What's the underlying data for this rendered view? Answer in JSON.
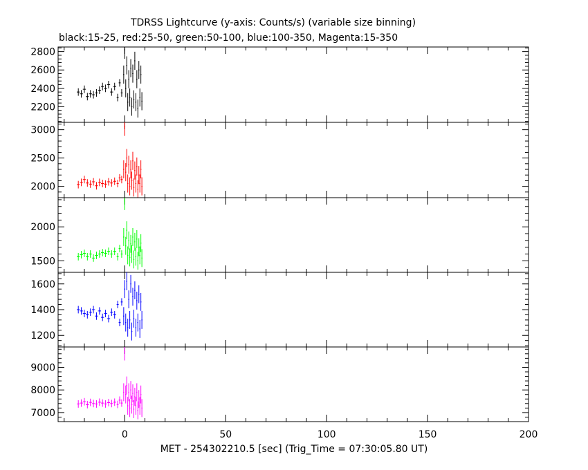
{
  "title": "TDRSS Lightcurve (y-axis: Counts/s) (variable size binning)",
  "subtitle": "black:15-25, red:25-50, green:50-100, blue:100-350, Magenta:15-350",
  "xlabel": "MET - 254302210.5 [sec] (Trig_Time = 07:30:05.80 UT)",
  "chart_data": {
    "type": "line",
    "title": "TDRSS Lightcurve (y-axis: Counts/s) (variable size binning)",
    "subtitle": "black:15-25, red:25-50, green:50-100, blue:100-350, Magenta:15-350",
    "xlabel": "MET - 254302210.5 [sec] (Trig_Time = 07:30:05.80 UT)",
    "xlim": [
      -33,
      200
    ],
    "xticks": [
      0,
      50,
      100,
      150,
      200
    ],
    "panels": [
      {
        "name": "15-25",
        "color": "#000000",
        "ylim": [
          2030,
          2850
        ],
        "yticks": [
          2200,
          2400,
          2600,
          2800
        ],
        "points": [
          [
            -23,
            2360
          ],
          [
            -21.5,
            2340
          ],
          [
            -20,
            2390
          ],
          [
            -18.5,
            2310
          ],
          [
            -17,
            2340
          ],
          [
            -15.5,
            2330
          ],
          [
            -14,
            2350
          ],
          [
            -12.5,
            2380
          ],
          [
            -11,
            2420
          ],
          [
            -9.5,
            2400
          ],
          [
            -8,
            2440
          ],
          [
            -6.5,
            2360
          ],
          [
            -5,
            2420
          ],
          [
            -3.5,
            2300
          ],
          [
            -2.5,
            2460
          ],
          [
            -1.5,
            2350
          ],
          [
            -0.5,
            2550
          ],
          [
            0,
            2820
          ],
          [
            0.5,
            2400
          ],
          [
            1,
            2650
          ],
          [
            1.5,
            2250
          ],
          [
            2,
            2500
          ],
          [
            2.5,
            2300
          ],
          [
            3,
            2620
          ],
          [
            3.5,
            2200
          ],
          [
            4,
            2560
          ],
          [
            4.5,
            2280
          ],
          [
            5,
            2700
          ],
          [
            5.5,
            2250
          ],
          [
            6,
            2500
          ],
          [
            6.5,
            2180
          ],
          [
            7,
            2600
          ],
          [
            7.5,
            2300
          ],
          [
            8,
            2550
          ],
          [
            8.5,
            2260
          ]
        ]
      },
      {
        "name": "25-50",
        "color": "#ff0000",
        "ylim": [
          1800,
          3130
        ],
        "yticks": [
          2000,
          2500,
          3000
        ],
        "points": [
          [
            -23,
            2030
          ],
          [
            -21.5,
            2070
          ],
          [
            -20,
            2120
          ],
          [
            -18.5,
            2060
          ],
          [
            -17,
            2040
          ],
          [
            -15.5,
            2080
          ],
          [
            -14,
            2010
          ],
          [
            -12.5,
            2070
          ],
          [
            -11,
            2050
          ],
          [
            -9.5,
            2040
          ],
          [
            -8,
            2080
          ],
          [
            -6.5,
            2060
          ],
          [
            -5,
            2090
          ],
          [
            -3.5,
            2050
          ],
          [
            -2.5,
            2150
          ],
          [
            -1.5,
            2120
          ],
          [
            -0.5,
            2300
          ],
          [
            0,
            3050
          ],
          [
            0.5,
            2250
          ],
          [
            1,
            2500
          ],
          [
            1.5,
            2050
          ],
          [
            2,
            2380
          ],
          [
            2.5,
            2000
          ],
          [
            3,
            2300
          ],
          [
            3.5,
            2100
          ],
          [
            4,
            2450
          ],
          [
            4.5,
            1980
          ],
          [
            5,
            2280
          ],
          [
            5.5,
            2050
          ],
          [
            6,
            2350
          ],
          [
            6.5,
            1950
          ],
          [
            7,
            2200
          ],
          [
            7.5,
            2050
          ],
          [
            8,
            2300
          ],
          [
            8.5,
            2000
          ]
        ]
      },
      {
        "name": "50-100",
        "color": "#00ff00",
        "ylim": [
          1330,
          2430
        ],
        "yticks": [
          1500,
          2000
        ],
        "points": [
          [
            -23,
            1560
          ],
          [
            -21.5,
            1590
          ],
          [
            -20,
            1610
          ],
          [
            -18.5,
            1560
          ],
          [
            -17,
            1600
          ],
          [
            -15.5,
            1540
          ],
          [
            -14,
            1580
          ],
          [
            -12.5,
            1600
          ],
          [
            -11,
            1620
          ],
          [
            -9.5,
            1610
          ],
          [
            -8,
            1640
          ],
          [
            -6.5,
            1600
          ],
          [
            -5,
            1640
          ],
          [
            -3.5,
            1560
          ],
          [
            -2.5,
            1680
          ],
          [
            -1.5,
            1600
          ],
          [
            -0.5,
            1850
          ],
          [
            0,
            2380
          ],
          [
            0.5,
            1720
          ],
          [
            1,
            1950
          ],
          [
            1.5,
            1580
          ],
          [
            2,
            1800
          ],
          [
            2.5,
            1550
          ],
          [
            3,
            1750
          ],
          [
            3.5,
            1600
          ],
          [
            4,
            1850
          ],
          [
            4.5,
            1520
          ],
          [
            5,
            1780
          ],
          [
            5.5,
            1560
          ],
          [
            6,
            1820
          ],
          [
            6.5,
            1500
          ],
          [
            7,
            1700
          ],
          [
            7.5,
            1580
          ],
          [
            8,
            1760
          ],
          [
            8.5,
            1540
          ]
        ]
      },
      {
        "name": "100-350",
        "color": "#0000ff",
        "ylim": [
          1110,
          1690
        ],
        "yticks": [
          1200,
          1400,
          1600
        ],
        "points": [
          [
            -23,
            1400
          ],
          [
            -21.5,
            1390
          ],
          [
            -20,
            1370
          ],
          [
            -18.5,
            1360
          ],
          [
            -17,
            1380
          ],
          [
            -15.5,
            1400
          ],
          [
            -14,
            1350
          ],
          [
            -12.5,
            1390
          ],
          [
            -11,
            1340
          ],
          [
            -9.5,
            1370
          ],
          [
            -8,
            1330
          ],
          [
            -6.5,
            1380
          ],
          [
            -5,
            1360
          ],
          [
            -3.5,
            1440
          ],
          [
            -2.5,
            1300
          ],
          [
            -1.5,
            1460
          ],
          [
            -0.5,
            1350
          ],
          [
            0,
            1560
          ],
          [
            0.5,
            1300
          ],
          [
            1,
            1620
          ],
          [
            1.5,
            1260
          ],
          [
            2,
            1480
          ],
          [
            2.5,
            1320
          ],
          [
            3,
            1600
          ],
          [
            3.5,
            1230
          ],
          [
            4,
            1500
          ],
          [
            4.5,
            1330
          ],
          [
            5,
            1550
          ],
          [
            5.5,
            1260
          ],
          [
            6,
            1470
          ],
          [
            6.5,
            1300
          ],
          [
            7,
            1520
          ],
          [
            7.5,
            1250
          ],
          [
            8,
            1460
          ],
          [
            8.5,
            1320
          ]
        ]
      },
      {
        "name": "15-350",
        "color": "#ff00ff",
        "ylim": [
          6600,
          9900
        ],
        "yticks": [
          7000,
          8000,
          9000
        ],
        "points": [
          [
            -23,
            7380
          ],
          [
            -21.5,
            7420
          ],
          [
            -20,
            7480
          ],
          [
            -18.5,
            7350
          ],
          [
            -17,
            7450
          ],
          [
            -15.5,
            7400
          ],
          [
            -14,
            7380
          ],
          [
            -12.5,
            7460
          ],
          [
            -11,
            7420
          ],
          [
            -9.5,
            7380
          ],
          [
            -8,
            7440
          ],
          [
            -6.5,
            7400
          ],
          [
            -5,
            7460
          ],
          [
            -3.5,
            7360
          ],
          [
            -2.5,
            7550
          ],
          [
            -1.5,
            7420
          ],
          [
            -0.5,
            7900
          ],
          [
            0,
            9700
          ],
          [
            0.5,
            7800
          ],
          [
            1,
            8200
          ],
          [
            1.5,
            7300
          ],
          [
            2,
            7900
          ],
          [
            2.5,
            7200
          ],
          [
            3,
            8000
          ],
          [
            3.5,
            7350
          ],
          [
            4,
            7850
          ],
          [
            4.5,
            7150
          ],
          [
            5,
            7700
          ],
          [
            5.5,
            7300
          ],
          [
            6,
            7900
          ],
          [
            6.5,
            7100
          ],
          [
            7,
            7600
          ],
          [
            7.5,
            7300
          ],
          [
            8,
            7800
          ],
          [
            8.5,
            7200
          ]
        ]
      }
    ]
  }
}
